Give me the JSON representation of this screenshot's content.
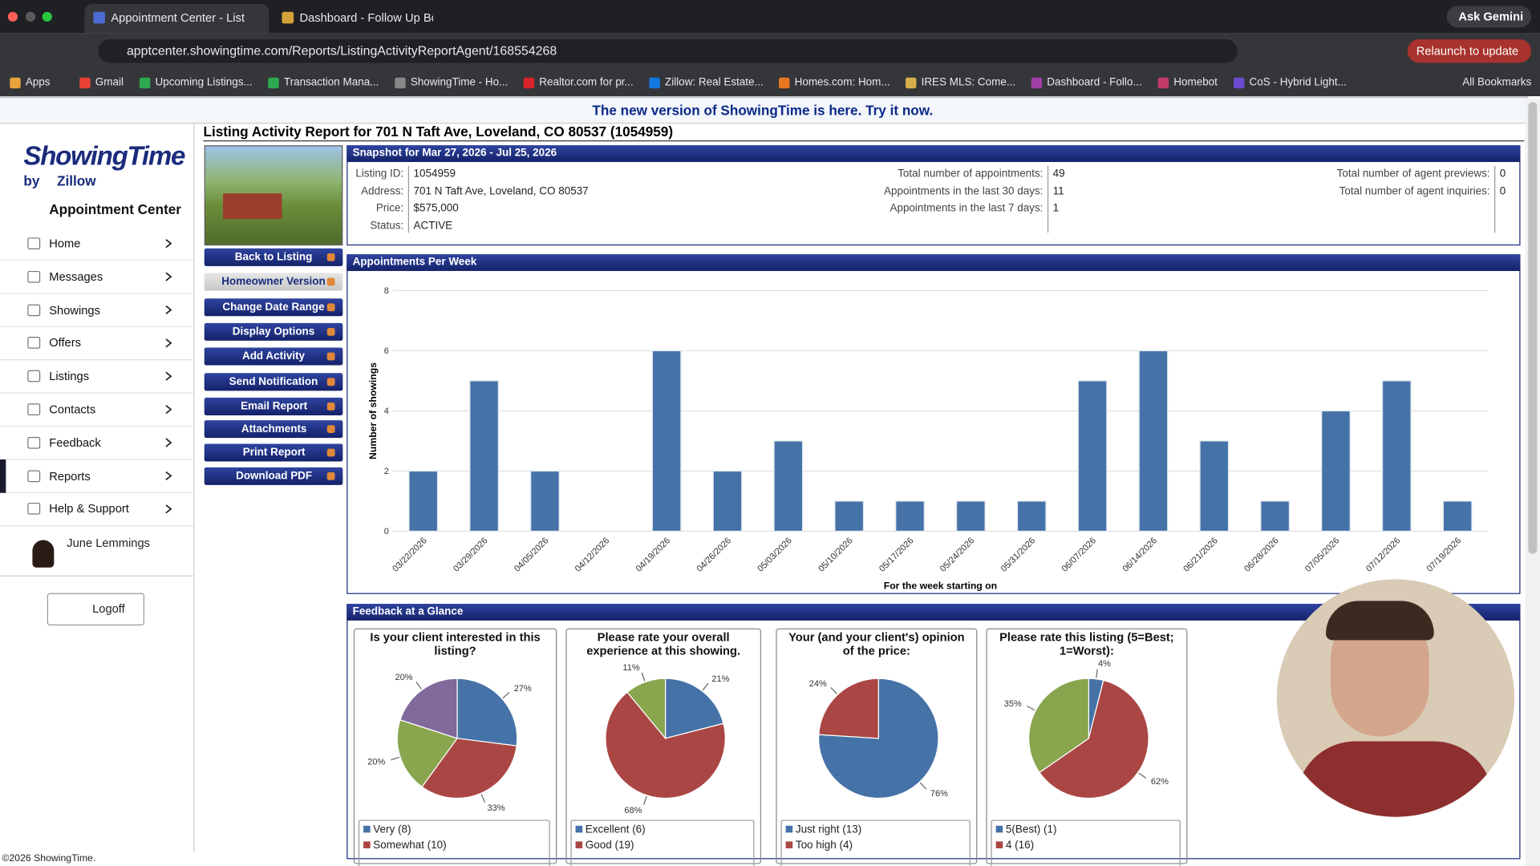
{
  "browser": {
    "tabs": [
      "Appointment Center - Listing",
      "Dashboard - Follow Up Boss"
    ],
    "ask_gemini": "Ask Gemini",
    "url": "apptcenter.showingtime.com/Reports/ListingActivityReportAgent/168554268",
    "relaunch": "Relaunch to update",
    "bookmarks": [
      "Apps",
      "Gmail",
      "Upcoming Listings...",
      "Transaction Mana...",
      "ShowingTime - Ho...",
      "Realtor.com for pr...",
      "Zillow: Real Estate...",
      "Homes.com: Hom...",
      "IRES MLS: Come...",
      "Dashboard - Follo...",
      "Homebot",
      "CoS - Hybrid Light..."
    ],
    "all_bookmarks": "All Bookmarks"
  },
  "banner": "The new version of ShowingTime is here. Try it now.",
  "sidebar": {
    "logo": "ShowingTime",
    "by_line": "by",
    "zillow": "Zillow",
    "app_title": "Appointment Center",
    "nav": [
      {
        "label": "Home"
      },
      {
        "label": "Messages"
      },
      {
        "label": "Showings"
      },
      {
        "label": "Offers"
      },
      {
        "label": "Listings"
      },
      {
        "label": "Contacts"
      },
      {
        "label": "Feedback"
      },
      {
        "label": "Reports",
        "active": true
      },
      {
        "label": "Help & Support"
      }
    ],
    "user": "June Lemmings",
    "logoff": "Logoff"
  },
  "report": {
    "title": "Listing Activity Report for 701 N Taft Ave, Loveland, CO 80537 (1054959)",
    "actions": [
      {
        "label": "Back to Listing"
      },
      {
        "label": "Homeowner Version",
        "selected": true
      },
      {
        "label": "Change Date Range"
      },
      {
        "label": "Display Options"
      },
      {
        "label": "Add Activity"
      },
      {
        "label": "Send Notification"
      },
      {
        "label": "Email Report",
        "expandable": true
      },
      {
        "label": "Attachments",
        "expandable": true
      },
      {
        "label": "Print Report",
        "expandable": true
      },
      {
        "label": "Download PDF",
        "expandable": true
      }
    ],
    "snapshot": {
      "heading": "Snapshot for Mar 27, 2026 - Jul 25, 2026",
      "listing": [
        {
          "label": "Listing ID:",
          "value": "1054959"
        },
        {
          "label": "Address:",
          "value": "701 N Taft Ave, Loveland, CO 80537"
        },
        {
          "label": "Price:",
          "value": "$575,000"
        },
        {
          "label": "Status:",
          "value": "ACTIVE"
        }
      ],
      "appointments": [
        {
          "label": "Total number of appointments:",
          "value": 49
        },
        {
          "label": "Appointments in the last 30 days:",
          "value": 11
        },
        {
          "label": "Appointments in the last 7 days:",
          "value": 1
        }
      ],
      "agent": [
        {
          "label": "Total number of agent previews:",
          "value": 0
        },
        {
          "label": "Total number of agent inquiries:",
          "value": 0
        }
      ]
    },
    "feedback_heading": "Feedback at a Glance"
  },
  "chart_data": [
    {
      "type": "bar",
      "title": "Appointments Per Week",
      "categories": [
        "03/22/2026",
        "03/29/2026",
        "04/05/2026",
        "04/12/2026",
        "04/19/2026",
        "04/26/2026",
        "05/03/2026",
        "05/10/2026",
        "05/17/2026",
        "05/24/2026",
        "05/31/2026",
        "06/07/2026",
        "06/14/2026",
        "06/21/2026",
        "06/28/2026",
        "07/05/2026",
        "07/12/2026",
        "07/19/2026"
      ],
      "values": [
        2,
        5,
        2,
        0,
        6,
        2,
        3,
        1,
        1,
        1,
        1,
        5,
        6,
        3,
        1,
        4,
        5,
        1
      ],
      "color": "#4572a7",
      "ylim": [
        0,
        8
      ],
      "yticks": [
        0,
        2,
        4,
        6,
        8
      ],
      "grid": true,
      "ylabel": "Number of showings",
      "xlabel": "For the week starting on"
    },
    {
      "type": "pie",
      "title": "Is your client interested in this listing?",
      "categories": [
        "Very (8)",
        "Somewhat (10)",
        null,
        null
      ],
      "values": [
        27,
        33,
        20,
        20
      ],
      "value_labels": [
        "27%",
        "33%",
        "20%",
        "20%"
      ],
      "colors": [
        "#4572a7",
        "#aa4643",
        "#89a54e",
        "#80699b"
      ]
    },
    {
      "type": "pie",
      "title": "Please rate your overall experience at this showing.",
      "categories": [
        "Excellent (6)",
        "Good (19)",
        null
      ],
      "values": [
        21,
        68,
        11
      ],
      "value_labels": [
        "21%",
        "68%",
        "11%"
      ],
      "colors": [
        "#4572a7",
        "#aa4643",
        "#89a54e"
      ]
    },
    {
      "type": "pie",
      "title": "Your (and your client's) opinion of the price:",
      "categories": [
        "Just right (13)",
        "Too high (4)"
      ],
      "values": [
        76,
        24
      ],
      "value_labels": [
        "76%",
        "24%"
      ],
      "colors": [
        "#4572a7",
        "#aa4643"
      ]
    },
    {
      "type": "pie",
      "title": "Please rate this listing (5=Best; 1=Worst):",
      "categories": [
        "5(Best) (1)",
        "4 (16)",
        null
      ],
      "values": [
        4,
        62,
        35
      ],
      "value_labels": [
        "4%",
        "62%",
        "35%"
      ],
      "colors": [
        "#4572a7",
        "#aa4643",
        "#89a54e"
      ]
    }
  ],
  "footer": "©2026 ShowingTime."
}
